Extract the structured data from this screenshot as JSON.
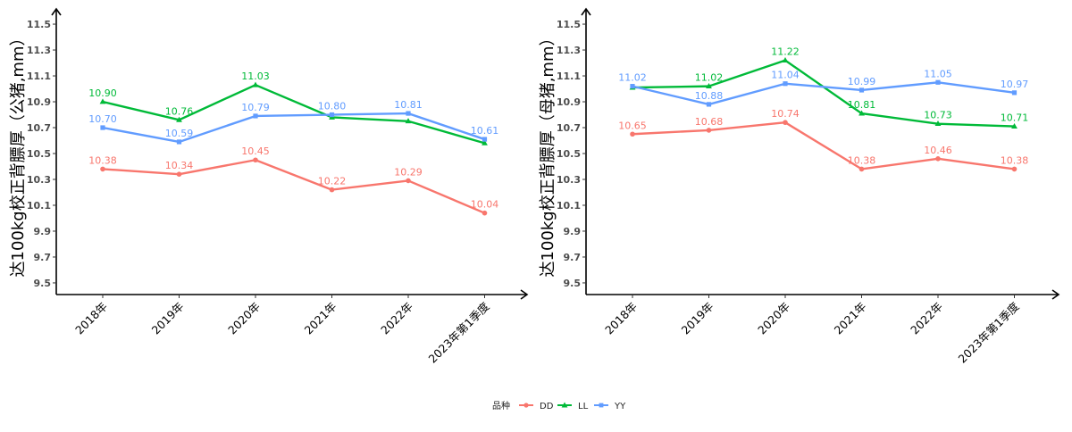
{
  "legend": {
    "title": "品种",
    "items": [
      {
        "label": "DD",
        "color": "#F8766D",
        "marker": "circle"
      },
      {
        "label": "LL",
        "color": "#00BA38",
        "marker": "triangle"
      },
      {
        "label": "YY",
        "color": "#619CFF",
        "marker": "square"
      }
    ]
  },
  "chart_data": [
    {
      "type": "line",
      "ylabel": "达100kg校正背膘厚（公猪,mm）",
      "xlabel": "",
      "categories": [
        "2018年",
        "2019年",
        "2020年",
        "2021年",
        "2022年",
        "2023年第1季度"
      ],
      "yticks": [
        "9.5",
        "9.7",
        "9.9",
        "10.1",
        "10.3",
        "10.5",
        "10.7",
        "10.9",
        "11.1",
        "11.3",
        "11.5"
      ],
      "ylim": [
        9.41,
        11.59
      ],
      "grid": false,
      "series": [
        {
          "name": "DD",
          "values": [
            10.38,
            10.34,
            10.45,
            10.22,
            10.29,
            10.04
          ],
          "labels": [
            "10.38",
            "10.34",
            "10.45",
            "10.22",
            "10.29",
            "10.04"
          ]
        },
        {
          "name": "LL",
          "values": [
            10.9,
            10.76,
            11.03,
            10.78,
            10.75,
            10.58
          ],
          "labels": [
            "10.90",
            "10.76",
            "11.03",
            "",
            "",
            ""
          ]
        },
        {
          "name": "YY",
          "values": [
            10.7,
            10.59,
            10.79,
            10.8,
            10.81,
            10.61
          ],
          "labels": [
            "10.70",
            "10.59",
            "10.79",
            "10.80",
            "10.81",
            "10.61"
          ]
        }
      ]
    },
    {
      "type": "line",
      "ylabel": "达100kg校正背膘厚（母猪,mm）",
      "xlabel": "",
      "categories": [
        "2018年",
        "2019年",
        "2020年",
        "2021年",
        "2022年",
        "2023年第1季度"
      ],
      "yticks": [
        "9.5",
        "9.7",
        "9.9",
        "10.1",
        "10.3",
        "10.5",
        "10.7",
        "10.9",
        "11.1",
        "11.3",
        "11.5"
      ],
      "ylim": [
        9.41,
        11.59
      ],
      "grid": false,
      "series": [
        {
          "name": "DD",
          "values": [
            10.65,
            10.68,
            10.74,
            10.38,
            10.46,
            10.38
          ],
          "labels": [
            "10.65",
            "10.68",
            "10.74",
            "10.38",
            "10.46",
            "10.38"
          ]
        },
        {
          "name": "LL",
          "values": [
            11.01,
            11.02,
            11.22,
            10.81,
            10.73,
            10.71
          ],
          "labels": [
            "",
            "11.02",
            "11.22",
            "10.81",
            "10.73",
            "10.71"
          ]
        },
        {
          "name": "YY",
          "values": [
            11.02,
            10.88,
            11.04,
            10.99,
            11.05,
            10.97
          ],
          "labels": [
            "11.02",
            "10.88",
            "11.04",
            "10.99",
            "11.05",
            "10.97"
          ]
        }
      ]
    }
  ]
}
